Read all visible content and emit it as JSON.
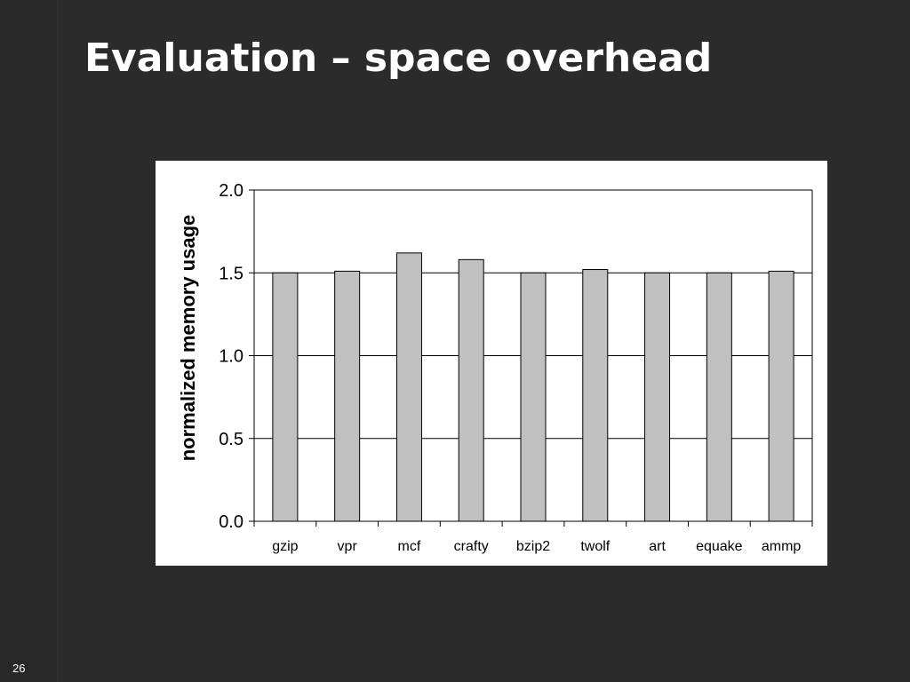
{
  "slide": {
    "title": "Evaluation – space overhead",
    "page_number": "26"
  },
  "colors": {
    "background": "#2b2b2b",
    "title": "#ffffff",
    "bar_fill": "#c0c0c0",
    "bar_stroke": "#000000",
    "panel": "#ffffff"
  },
  "chart_data": {
    "type": "bar",
    "categories": [
      "gzip",
      "vpr",
      "mcf",
      "crafty",
      "bzip2",
      "twolf",
      "art",
      "equake",
      "ammp"
    ],
    "values": [
      1.5,
      1.51,
      1.62,
      1.58,
      1.5,
      1.52,
      1.5,
      1.5,
      1.51
    ],
    "title": "",
    "xlabel": "",
    "ylabel": "normalized memory usage",
    "ylim": [
      0.0,
      2.0
    ],
    "yticks": [
      "0.0",
      "0.5",
      "1.0",
      "1.5",
      "2.0"
    ],
    "ytick_values": [
      0.0,
      0.5,
      1.0,
      1.5,
      2.0
    ],
    "grid": true,
    "legend": "none"
  }
}
